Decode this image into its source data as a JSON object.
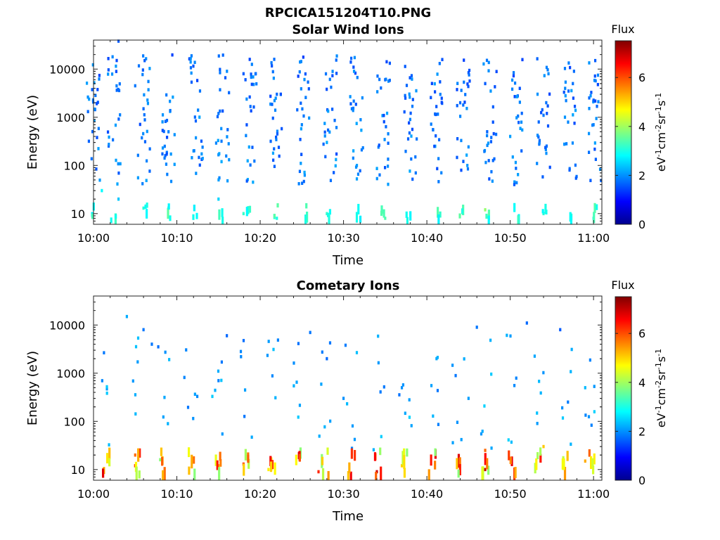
{
  "figure": {
    "title": "RPCICA151204T10.PNG"
  },
  "colors": {
    "colormap": "jet",
    "stops": [
      "#00008f",
      "#0000ff",
      "#0080ff",
      "#00ffff",
      "#80ff80",
      "#ffff00",
      "#ff8000",
      "#ff0000",
      "#800000"
    ]
  },
  "chart_data": [
    {
      "type": "heatmap",
      "title": "Solar Wind Ions",
      "xlabel": "Time",
      "ylabel": "Energy (eV)",
      "x_ticks": [
        "10:00",
        "10:10",
        "10:20",
        "10:30",
        "10:40",
        "10:50",
        "11:00"
      ],
      "y_ticks": [
        "10",
        "100",
        "1000",
        "10000"
      ],
      "y_scale": "log",
      "xlim": [
        "10:00",
        "11:01"
      ],
      "ylim": [
        6,
        40000
      ],
      "colorbar": {
        "title": "Flux",
        "unit": "eV-1cm-2sr-1s-1",
        "ticks": [
          "0",
          "2",
          "4",
          "6"
        ],
        "range": [
          0,
          7.5
        ]
      },
      "bursts_minutes": [
        0,
        2.5,
        6,
        9,
        12.3,
        15.5,
        18.8,
        22,
        25.2,
        28.4,
        31.6,
        34.8,
        38,
        41.2,
        44.4,
        47.6,
        50.8,
        54,
        57.2,
        60.2
      ],
      "sample_points": [
        {
          "t": "10:03",
          "e": 38000,
          "v": 1.6
        },
        {
          "t": "10:05",
          "e": 4500,
          "v": 1.8
        },
        {
          "t": "10:06",
          "e": 1500,
          "v": 1.7
        },
        {
          "t": "10:09",
          "e": 500,
          "v": 1.9
        },
        {
          "t": "10:12",
          "e": 200,
          "v": 2.1
        },
        {
          "t": "10:15",
          "e": 1200,
          "v": 1.8
        },
        {
          "t": "10:18",
          "e": 8000,
          "v": 1.6
        },
        {
          "t": "10:22",
          "e": 3000,
          "v": 1.7
        },
        {
          "t": "10:25",
          "e": 700,
          "v": 1.9
        },
        {
          "t": "10:28",
          "e": 300,
          "v": 2.2
        },
        {
          "t": "10:31",
          "e": 1500,
          "v": 1.8
        },
        {
          "t": "10:35",
          "e": 6000,
          "v": 1.6
        },
        {
          "t": "10:38",
          "e": 900,
          "v": 1.9
        },
        {
          "t": "10:41",
          "e": 250,
          "v": 2.2
        },
        {
          "t": "10:44",
          "e": 2000,
          "v": 1.7
        },
        {
          "t": "10:47",
          "e": 5000,
          "v": 1.6
        },
        {
          "t": "10:50",
          "e": 400,
          "v": 2.1
        },
        {
          "t": "10:54",
          "e": 1100,
          "v": 1.8
        },
        {
          "t": "10:57",
          "e": 3500,
          "v": 1.7
        },
        {
          "t": "11:00",
          "e": 700,
          "v": 1.9
        },
        {
          "t": "10:01",
          "e": 30,
          "v": 2.8
        },
        {
          "t": "10:03",
          "e": 20,
          "v": 2.4
        },
        {
          "t": "10:06",
          "e": 13,
          "v": 3.1
        },
        {
          "t": "10:09",
          "e": 13,
          "v": 3.0
        },
        {
          "t": "10:15",
          "e": 20,
          "v": 2.5
        },
        {
          "t": "10:18",
          "e": 10,
          "v": 3.2
        },
        {
          "t": "10:22",
          "e": 8,
          "v": 3.0
        },
        {
          "t": "10:28",
          "e": 10,
          "v": 3.2
        },
        {
          "t": "10:35",
          "e": 8,
          "v": 3.4
        },
        {
          "t": "10:47",
          "e": 12,
          "v": 3.9
        },
        {
          "t": "10:54",
          "e": 10,
          "v": 3.1
        },
        {
          "t": "11:00",
          "e": 8,
          "v": 3.0
        }
      ]
    },
    {
      "type": "heatmap",
      "title": "Cometary Ions",
      "xlabel": "Time",
      "ylabel": "Energy (eV)",
      "x_ticks": [
        "10:00",
        "10:10",
        "10:20",
        "10:30",
        "10:40",
        "10:50",
        "11:00"
      ],
      "y_ticks": [
        "10",
        "100",
        "1000",
        "10000"
      ],
      "y_scale": "log",
      "xlim": [
        "10:00",
        "11:01"
      ],
      "ylim": [
        6,
        40000
      ],
      "colorbar": {
        "title": "Flux",
        "unit": "eV-1cm-2sr-1s-1",
        "ticks": [
          "0",
          "2",
          "4",
          "6"
        ],
        "range": [
          0,
          7.5
        ]
      },
      "bursts_minutes": [
        1.5,
        5.3,
        8.5,
        11.7,
        15,
        18.2,
        21.4,
        24.6,
        27.8,
        31,
        34.2,
        37.4,
        40.6,
        43.8,
        47,
        50.2,
        53.4,
        56.6,
        59.8
      ],
      "sample_points": [
        {
          "t": "10:04",
          "e": 15000,
          "v": 2.2
        },
        {
          "t": "10:06",
          "e": 8000,
          "v": 1.8
        },
        {
          "t": "10:07",
          "e": 4000,
          "v": 1.8
        },
        {
          "t": "10:16",
          "e": 6000,
          "v": 1.7
        },
        {
          "t": "10:26",
          "e": 7000,
          "v": 1.8
        },
        {
          "t": "10:28",
          "e": 2000,
          "v": 1.7
        },
        {
          "t": "10:46",
          "e": 9000,
          "v": 1.8
        },
        {
          "t": "10:52",
          "e": 11000,
          "v": 1.7
        },
        {
          "t": "10:56",
          "e": 8000,
          "v": 1.6
        },
        {
          "t": "10:15",
          "e": 700,
          "v": 1.9
        },
        {
          "t": "10:30",
          "e": 300,
          "v": 2.0
        },
        {
          "t": "10:37",
          "e": 500,
          "v": 2.0
        },
        {
          "t": "10:45",
          "e": 300,
          "v": 2.1
        },
        {
          "t": "10:59",
          "e": 500,
          "v": 2.3
        },
        {
          "t": "10:05",
          "e": 20,
          "v": 5.8
        },
        {
          "t": "10:05",
          "e": 12,
          "v": 6.1
        },
        {
          "t": "10:08",
          "e": 16,
          "v": 3.8
        },
        {
          "t": "10:15",
          "e": 12,
          "v": 5.2
        },
        {
          "t": "10:18",
          "e": 13,
          "v": 6.0
        },
        {
          "t": "10:21",
          "e": 10,
          "v": 4.8
        },
        {
          "t": "10:27",
          "e": 9,
          "v": 6.3
        },
        {
          "t": "10:34",
          "e": 9,
          "v": 6.9
        },
        {
          "t": "10:37",
          "e": 12,
          "v": 5.0
        },
        {
          "t": "10:47",
          "e": 10,
          "v": 7.0
        },
        {
          "t": "10:47",
          "e": 25,
          "v": 5.8
        },
        {
          "t": "10:54",
          "e": 30,
          "v": 5.1
        },
        {
          "t": "10:59",
          "e": 15,
          "v": 5.3
        }
      ]
    }
  ]
}
